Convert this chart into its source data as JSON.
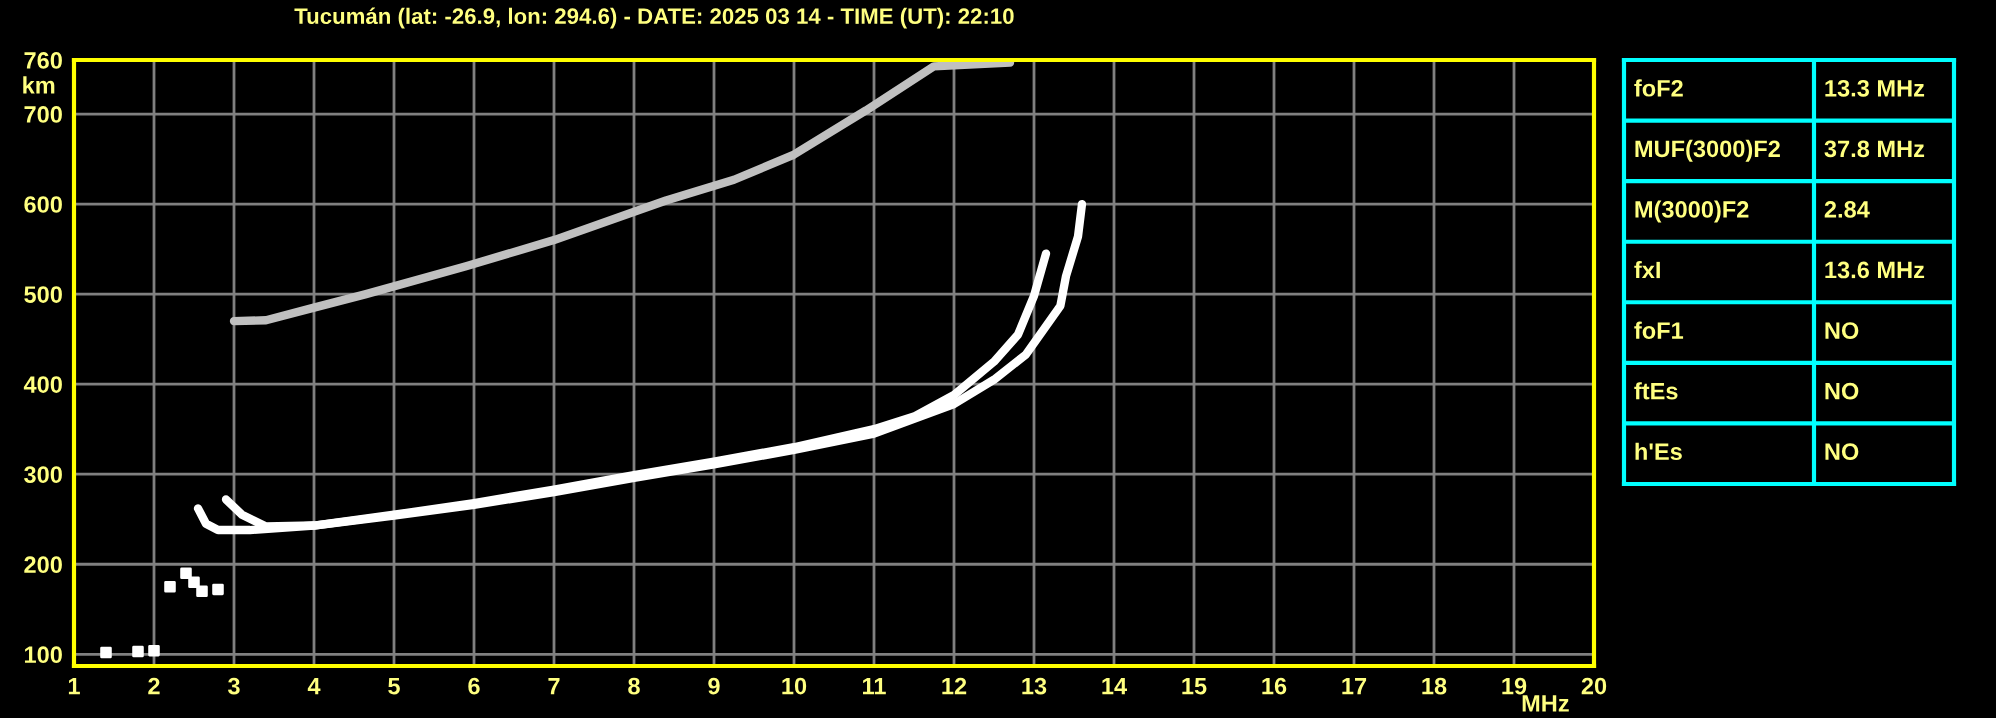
{
  "chart_data": [
    {
      "type": "line",
      "title": "Tucumán (lat: -26.9, lon: 294.6) - DATE: 2025 03 14 - TIME (UT): 22:10",
      "xlabel": "MHz",
      "ylabel": "km",
      "xlim": [
        1,
        20
      ],
      "ylim": [
        87,
        760
      ],
      "xticks": [
        1,
        2,
        3,
        4,
        5,
        6,
        7,
        8,
        9,
        10,
        11,
        12,
        13,
        14,
        15,
        16,
        17,
        18,
        19,
        20
      ],
      "yticks": [
        100,
        200,
        300,
        400,
        500,
        600,
        700,
        760
      ],
      "grid": true,
      "marker": "none",
      "line_style": "solid",
      "series": [
        {
          "color": "#ffffff",
          "x": [
            2.55,
            2.65,
            2.8,
            3.2,
            4,
            5,
            6,
            7,
            8,
            9,
            10,
            11,
            11.5,
            12,
            12.5,
            12.8,
            13.0,
            13.15
          ],
          "values": [
            262,
            245,
            238,
            238,
            243,
            255,
            268,
            283,
            299,
            314,
            330,
            350,
            364,
            388,
            425,
            455,
            498,
            545
          ]
        },
        {
          "color": "#ffffff",
          "x": [
            2.9,
            3.1,
            3.4,
            4,
            5,
            6,
            7,
            8,
            9,
            10,
            11,
            12,
            12.5,
            12.9,
            13.33,
            13.4,
            13.55,
            13.6
          ],
          "values": [
            272,
            255,
            242,
            243,
            254,
            266,
            280,
            296,
            311,
            327,
            345,
            378,
            405,
            433,
            487,
            520,
            564,
            600
          ]
        },
        {
          "color": "#c0c0c0",
          "x": [
            3.0,
            3.4,
            4,
            4.65,
            5.9,
            7,
            8.4,
            9.25,
            10,
            10.9,
            11.75,
            12.7
          ],
          "values": [
            470,
            471,
            485,
            500,
            531,
            560,
            604,
            627,
            655,
            704,
            753,
            757
          ]
        },
        {
          "color": "#ffffff",
          "type": "scatter",
          "marker": "square",
          "x": [
            2.2,
            2.4,
            2.5,
            2.6,
            2.8,
            1.4,
            1.8,
            2.0
          ],
          "values": [
            175,
            190,
            180,
            170,
            172,
            102,
            103,
            104
          ]
        }
      ]
    },
    {
      "type": "other",
      "categories": [
        "foF2",
        "MUF(3000)F2",
        "M(3000)F2",
        "fxI",
        "foF1",
        "ftEs",
        "h'Es"
      ],
      "value_labels": [
        "13.3 MHz",
        "37.8 MHz",
        "2.84",
        "13.6 MHz",
        "NO",
        "NO",
        "NO"
      ],
      "color": "#00ffff"
    }
  ]
}
